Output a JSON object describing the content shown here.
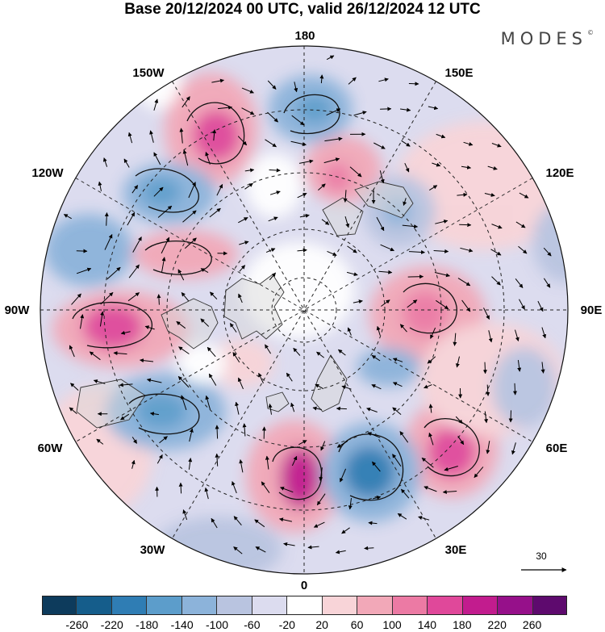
{
  "title": "Base 20/12/2024 00 UTC, valid 26/12/2024 12 UTC",
  "logo": "MODES",
  "logo_mark": "©",
  "longitude_labels": {
    "lon_180": "180",
    "lon_150e": "150E",
    "lon_120e": "120E",
    "lon_90e": "90E",
    "lon_60e": "60E",
    "lon_30e": "30E",
    "lon_0": "0",
    "lon_30w": "30W",
    "lon_60w": "60W",
    "lon_90w": "90W",
    "lon_120w": "120W",
    "lon_150w": "150W"
  },
  "vector_scale": {
    "label": "30"
  },
  "colorbar": {
    "colors": [
      "#0d3b5c",
      "#155d8b",
      "#2f7db4",
      "#5c9dcb",
      "#8cb3da",
      "#b9c4e0",
      "#dcdcef",
      "#ffffff",
      "#f8d4d8",
      "#f2a8b8",
      "#ec7aa4",
      "#e0489a",
      "#c21c8e",
      "#96108a",
      "#5e0a6e"
    ],
    "labels": [
      "-260",
      "-220",
      "-180",
      "-140",
      "-100",
      "-60",
      "-20",
      "20",
      "60",
      "100",
      "140",
      "180",
      "220",
      "260"
    ]
  },
  "map_style": {
    "positive_anomaly_color": "#ec7aa4",
    "negative_anomaly_color": "#5c9dcb",
    "land_color": "#d6d6d6",
    "grid_style": "dashed"
  }
}
